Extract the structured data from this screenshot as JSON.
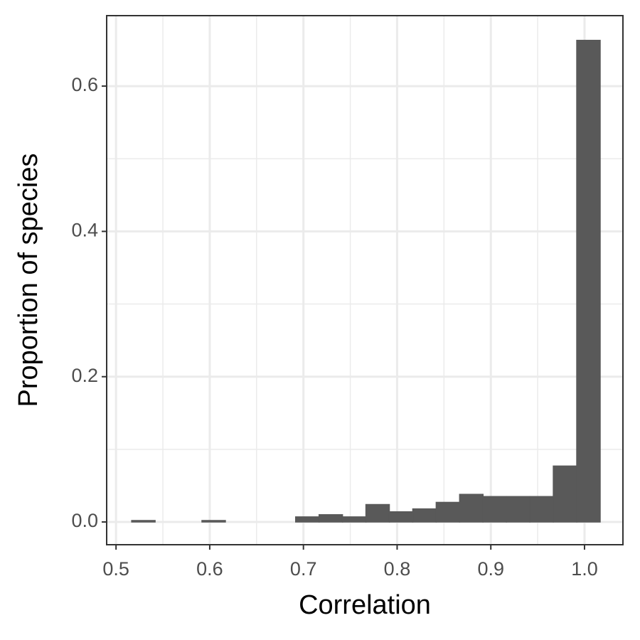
{
  "chart_data": {
    "type": "histogram",
    "x_label": "Correlation",
    "y_label": "Proportion of species",
    "bins": [
      0.5167,
      0.5417,
      0.5667,
      0.5917,
      0.6167,
      0.6417,
      0.6667,
      0.6917,
      0.7167,
      0.7417,
      0.7667,
      0.7917,
      0.8167,
      0.8417,
      0.8667,
      0.8917,
      0.9167,
      0.9417,
      0.9667,
      0.9917,
      1.0167
    ],
    "values": [
      0.002,
      0,
      0,
      0.002,
      0,
      0,
      0,
      0.007,
      0.01,
      0.007,
      0.024,
      0.014,
      0.018,
      0.027,
      0.038,
      0.035,
      0.035,
      0.035,
      0.077,
      0.663
    ],
    "color": "#595959",
    "xlim": [
      0.49,
      1.041
    ],
    "ylim": [
      -0.0313,
      0.697
    ],
    "xticks": [
      0.5,
      0.6,
      0.7,
      0.8,
      0.9,
      {
        "value": 1.0,
        "label": "1.0"
      }
    ],
    "yticks": [
      {
        "value": 0,
        "label": "0.0"
      },
      0.2,
      0.4,
      0.6
    ],
    "x_minor_ticks": [
      0.55,
      0.65,
      0.75,
      0.85,
      0.95
    ],
    "y_minor_ticks": [
      0.1,
      0.3,
      0.5
    ],
    "grid": true
  }
}
